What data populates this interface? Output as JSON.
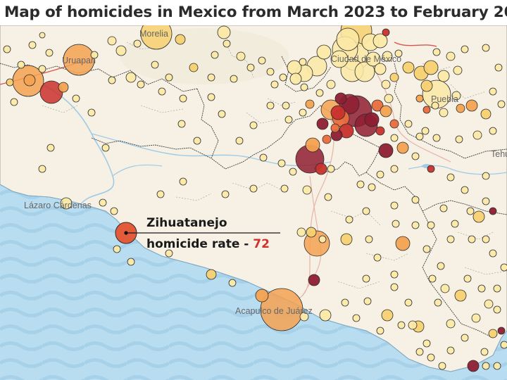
{
  "title": "Map of homicides in Mexico from March 2023 to February 2024",
  "colors": {
    "land": "#f6f1e4",
    "water": "#b9ddf0",
    "wave": "#a6d1e9",
    "border": "#3a3a3a",
    "river": "#9fcbe6",
    "road": "#e6b7ae",
    "scale": [
      "#fbe9a6",
      "#f7d070",
      "#f4a251",
      "#e86b3c",
      "#c9312c",
      "#8f1d33"
    ]
  },
  "labels": {
    "morelia": "Morelia",
    "uruapan": "Uruapan",
    "lazaro": "Lázaro Cárdenas",
    "acapulco": "Acapulco de Juárez",
    "cdmx": "Ciudad de México",
    "puebla": "Puebla",
    "tehuacan": "Tehuacán"
  },
  "annotation": {
    "city": "Zihuatanejo",
    "rate_label": "homicide rate - ",
    "rate_value": "72"
  }
}
